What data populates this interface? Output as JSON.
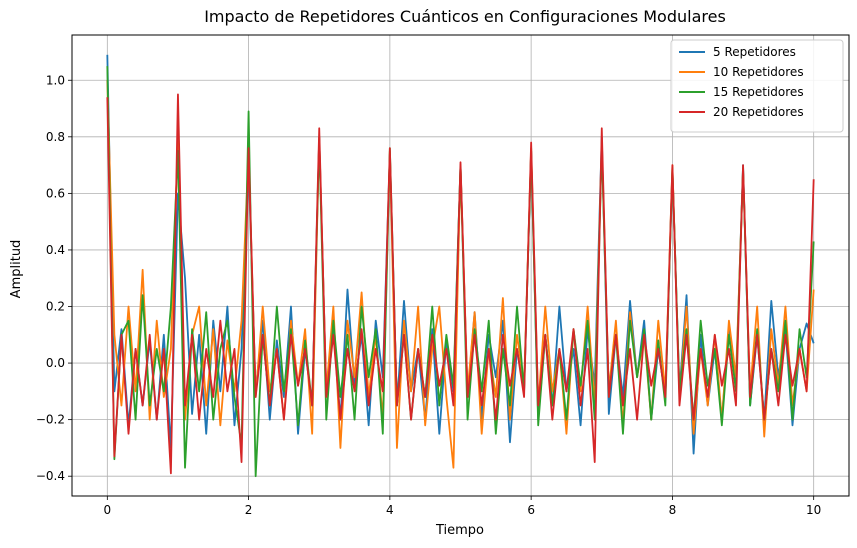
{
  "chart_data": {
    "type": "line",
    "title": "Impacto de Repetidores Cuánticos en Configuraciones Modulares",
    "xlabel": "Tiempo",
    "ylabel": "Amplitud",
    "xlim": [
      -0.5,
      10.5
    ],
    "ylim": [
      -0.47,
      1.16
    ],
    "xticks": [
      0,
      2,
      4,
      6,
      8,
      10
    ],
    "yticks": [
      -0.4,
      -0.2,
      0.0,
      0.2,
      0.4,
      0.6,
      0.8,
      1.0
    ],
    "xtick_labels": [
      "0",
      "2",
      "4",
      "6",
      "8",
      "10"
    ],
    "ytick_labels": [
      "−0.4",
      "−0.2",
      "0.0",
      "0.2",
      "0.4",
      "0.6",
      "0.8",
      "1.0"
    ],
    "grid": true,
    "legend_position": "top-right",
    "series": [
      {
        "name": "5 Repetidores",
        "color": "#1f77b4",
        "x": [
          0,
          0.1,
          0.2,
          0.3,
          0.4,
          0.5,
          0.6,
          0.7,
          0.8,
          0.9,
          1.0,
          1.1,
          1.2,
          1.3,
          1.4,
          1.5,
          1.6,
          1.7,
          1.8,
          1.9,
          2.0,
          2.1,
          2.2,
          2.3,
          2.4,
          2.5,
          2.6,
          2.7,
          2.8,
          2.9,
          3.0,
          3.1,
          3.2,
          3.3,
          3.4,
          3.5,
          3.6,
          3.7,
          3.8,
          3.9,
          4.0,
          4.1,
          4.2,
          4.3,
          4.4,
          4.5,
          4.6,
          4.7,
          4.8,
          4.9,
          5.0,
          5.1,
          5.2,
          5.3,
          5.4,
          5.5,
          5.6,
          5.7,
          5.8,
          5.9,
          6.0,
          6.1,
          6.2,
          6.3,
          6.4,
          6.5,
          6.6,
          6.7,
          6.8,
          6.9,
          7.0,
          7.1,
          7.2,
          7.3,
          7.4,
          7.5,
          7.6,
          7.7,
          7.8,
          7.9,
          8.0,
          8.1,
          8.2,
          8.3,
          8.4,
          8.5,
          8.6,
          8.7,
          8.8,
          8.9,
          9.0,
          9.1,
          9.2,
          9.3,
          9.4,
          9.5,
          9.6,
          9.7,
          9.8,
          9.9,
          10.0
        ],
        "y": [
          1.09,
          -0.1,
          0.12,
          -0.22,
          0.05,
          -0.15,
          0.08,
          -0.2,
          0.1,
          -0.3,
          0.6,
          0.3,
          -0.18,
          0.1,
          -0.25,
          0.15,
          -0.1,
          0.2,
          -0.22,
          0.05,
          0.7,
          -0.1,
          0.15,
          -0.2,
          0.08,
          -0.12,
          0.2,
          -0.25,
          0.05,
          -0.15,
          0.8,
          -0.1,
          0.12,
          -0.2,
          0.26,
          -0.08,
          0.1,
          -0.22,
          0.15,
          -0.05,
          0.74,
          -0.15,
          0.22,
          -0.1,
          0.05,
          -0.2,
          0.12,
          -0.25,
          0.08,
          -0.1,
          0.7,
          -0.12,
          0.18,
          -0.2,
          0.1,
          -0.05,
          0.15,
          -0.28,
          0.05,
          -0.1,
          0.75,
          -0.2,
          0.1,
          -0.15,
          0.2,
          -0.1,
          0.05,
          -0.22,
          0.12,
          -0.08,
          0.8,
          -0.18,
          0.1,
          -0.12,
          0.22,
          -0.05,
          0.15,
          -0.2,
          0.05,
          -0.12,
          0.68,
          -0.1,
          0.24,
          -0.32,
          0.1,
          -0.15,
          0.05,
          -0.2,
          0.12,
          -0.08,
          0.7,
          -0.15,
          0.1,
          -0.2,
          0.22,
          -0.05,
          0.12,
          -0.22,
          0.05,
          0.14,
          0.07
        ]
      },
      {
        "name": "10 Repetidores",
        "color": "#ff7f0e",
        "x": [
          0,
          0.1,
          0.2,
          0.3,
          0.4,
          0.5,
          0.6,
          0.7,
          0.8,
          0.9,
          1.0,
          1.1,
          1.2,
          1.3,
          1.4,
          1.5,
          1.6,
          1.7,
          1.8,
          1.9,
          2.0,
          2.1,
          2.2,
          2.3,
          2.4,
          2.5,
          2.6,
          2.7,
          2.8,
          2.9,
          3.0,
          3.1,
          3.2,
          3.3,
          3.4,
          3.5,
          3.6,
          3.7,
          3.8,
          3.9,
          4.0,
          4.1,
          4.2,
          4.3,
          4.4,
          4.5,
          4.6,
          4.7,
          4.8,
          4.9,
          5.0,
          5.1,
          5.2,
          5.3,
          5.4,
          5.5,
          5.6,
          5.7,
          5.8,
          5.9,
          6.0,
          6.1,
          6.2,
          6.3,
          6.4,
          6.5,
          6.6,
          6.7,
          6.8,
          6.9,
          7.0,
          7.1,
          7.2,
          7.3,
          7.4,
          7.5,
          7.6,
          7.7,
          7.8,
          7.9,
          8.0,
          8.1,
          8.2,
          8.3,
          8.4,
          8.5,
          8.6,
          8.7,
          8.8,
          8.9,
          9.0,
          9.1,
          9.2,
          9.3,
          9.4,
          9.5,
          9.6,
          9.7,
          9.8,
          9.9,
          10.0
        ],
        "y": [
          1.0,
          0.1,
          -0.15,
          0.2,
          -0.1,
          0.33,
          -0.2,
          0.15,
          -0.12,
          0.05,
          0.8,
          -0.2,
          0.1,
          0.2,
          -0.15,
          0.12,
          -0.22,
          0.08,
          -0.1,
          0.15,
          0.75,
          -0.12,
          0.2,
          -0.1,
          0.05,
          -0.2,
          0.15,
          -0.08,
          0.12,
          -0.25,
          0.8,
          -0.1,
          0.2,
          -0.3,
          0.15,
          -0.05,
          0.25,
          -0.12,
          0.1,
          -0.2,
          0.75,
          -0.3,
          0.15,
          -0.1,
          0.2,
          -0.22,
          0.05,
          0.2,
          -0.12,
          -0.37,
          0.7,
          -0.1,
          0.18,
          -0.25,
          0.05,
          -0.12,
          0.23,
          -0.2,
          0.1,
          -0.08,
          0.76,
          -0.15,
          0.2,
          -0.1,
          0.05,
          -0.25,
          0.12,
          -0.1,
          0.2,
          -0.15,
          0.78,
          -0.1,
          0.15,
          -0.22,
          0.18,
          -0.05,
          0.1,
          -0.2,
          0.15,
          -0.1,
          0.7,
          -0.12,
          0.2,
          -0.25,
          0.05,
          -0.15,
          0.1,
          -0.2,
          0.15,
          -0.05,
          0.68,
          -0.1,
          0.2,
          -0.26,
          0.12,
          -0.08,
          0.2,
          -0.15,
          0.05,
          -0.1,
          0.26
        ]
      },
      {
        "name": "15 Repetidores",
        "color": "#2ca02c",
        "x": [
          0,
          0.1,
          0.2,
          0.3,
          0.4,
          0.5,
          0.6,
          0.7,
          0.8,
          0.9,
          1.0,
          1.1,
          1.2,
          1.3,
          1.4,
          1.5,
          1.6,
          1.7,
          1.8,
          1.9,
          2.0,
          2.1,
          2.2,
          2.3,
          2.4,
          2.5,
          2.6,
          2.7,
          2.8,
          2.9,
          3.0,
          3.1,
          3.2,
          3.3,
          3.4,
          3.5,
          3.6,
          3.7,
          3.8,
          3.9,
          4.0,
          4.1,
          4.2,
          4.3,
          4.4,
          4.5,
          4.6,
          4.7,
          4.8,
          4.9,
          5.0,
          5.1,
          5.2,
          5.3,
          5.4,
          5.5,
          5.6,
          5.7,
          5.8,
          5.9,
          6.0,
          6.1,
          6.2,
          6.3,
          6.4,
          6.5,
          6.6,
          6.7,
          6.8,
          6.9,
          7.0,
          7.1,
          7.2,
          7.3,
          7.4,
          7.5,
          7.6,
          7.7,
          7.8,
          7.9,
          8.0,
          8.1,
          8.2,
          8.3,
          8.4,
          8.5,
          8.6,
          8.7,
          8.8,
          8.9,
          9.0,
          9.1,
          9.2,
          9.3,
          9.4,
          9.5,
          9.6,
          9.7,
          9.8,
          9.9,
          10.0
        ],
        "y": [
          1.05,
          -0.34,
          0.1,
          0.15,
          -0.2,
          0.24,
          -0.15,
          0.05,
          -0.1,
          0.2,
          0.75,
          -0.37,
          0.12,
          -0.1,
          0.18,
          -0.2,
          0.05,
          0.15,
          -0.12,
          -0.29,
          0.89,
          -0.4,
          0.1,
          -0.15,
          0.2,
          -0.1,
          0.12,
          -0.22,
          0.08,
          -0.15,
          0.79,
          -0.2,
          0.15,
          -0.12,
          0.1,
          -0.2,
          0.2,
          -0.05,
          0.12,
          -0.25,
          0.76,
          -0.15,
          0.1,
          -0.2,
          0.05,
          -0.12,
          0.2,
          -0.15,
          0.1,
          -0.08,
          0.7,
          -0.2,
          0.12,
          -0.1,
          0.15,
          -0.25,
          0.05,
          -0.15,
          0.2,
          -0.1,
          0.75,
          -0.22,
          0.1,
          -0.15,
          0.05,
          -0.2,
          0.12,
          -0.08,
          0.15,
          -0.2,
          0.77,
          -0.12,
          0.1,
          -0.25,
          0.15,
          -0.05,
          0.12,
          -0.2,
          0.08,
          -0.15,
          0.69,
          -0.1,
          0.12,
          -0.2,
          0.15,
          -0.08,
          0.05,
          -0.22,
          0.1,
          -0.1,
          0.69,
          -0.15,
          0.12,
          -0.2,
          0.05,
          -0.1,
          0.15,
          -0.2,
          0.12,
          -0.05,
          0.43
        ]
      },
      {
        "name": "20 Repetidores",
        "color": "#d62728",
        "x": [
          0,
          0.1,
          0.2,
          0.3,
          0.4,
          0.5,
          0.6,
          0.7,
          0.8,
          0.9,
          1.0,
          1.1,
          1.2,
          1.3,
          1.4,
          1.5,
          1.6,
          1.7,
          1.8,
          1.9,
          2.0,
          2.1,
          2.2,
          2.3,
          2.4,
          2.5,
          2.6,
          2.7,
          2.8,
          2.9,
          3.0,
          3.1,
          3.2,
          3.3,
          3.4,
          3.5,
          3.6,
          3.7,
          3.8,
          3.9,
          4.0,
          4.1,
          4.2,
          4.3,
          4.4,
          4.5,
          4.6,
          4.7,
          4.8,
          4.9,
          5.0,
          5.1,
          5.2,
          5.3,
          5.4,
          5.5,
          5.6,
          5.7,
          5.8,
          5.9,
          6.0,
          6.1,
          6.2,
          6.3,
          6.4,
          6.5,
          6.6,
          6.7,
          6.8,
          6.9,
          7.0,
          7.1,
          7.2,
          7.3,
          7.4,
          7.5,
          7.6,
          7.7,
          7.8,
          7.9,
          8.0,
          8.1,
          8.2,
          8.3,
          8.4,
          8.5,
          8.6,
          8.7,
          8.8,
          8.9,
          9.0,
          9.1,
          9.2,
          9.3,
          9.4,
          9.5,
          9.6,
          9.7,
          9.8,
          9.9,
          10.0
        ],
        "y": [
          0.94,
          -0.33,
          0.1,
          -0.25,
          0.05,
          -0.15,
          0.1,
          -0.2,
          0.05,
          -0.39,
          0.95,
          -0.15,
          0.1,
          -0.2,
          0.05,
          -0.12,
          0.15,
          -0.1,
          0.05,
          -0.35,
          0.76,
          -0.12,
          0.1,
          -0.15,
          0.05,
          -0.2,
          0.1,
          -0.08,
          0.05,
          -0.15,
          0.83,
          -0.12,
          0.1,
          -0.2,
          0.05,
          -0.1,
          0.12,
          -0.15,
          0.05,
          -0.1,
          0.76,
          -0.15,
          0.1,
          -0.2,
          0.05,
          -0.12,
          0.1,
          -0.08,
          0.05,
          -0.15,
          0.71,
          -0.12,
          0.1,
          -0.15,
          0.05,
          -0.2,
          0.1,
          -0.08,
          0.05,
          -0.12,
          0.78,
          -0.15,
          0.1,
          -0.2,
          0.05,
          -0.1,
          0.12,
          -0.15,
          0.05,
          -0.35,
          0.83,
          -0.12,
          0.1,
          -0.15,
          0.05,
          -0.2,
          0.1,
          -0.08,
          0.05,
          -0.12,
          0.7,
          -0.15,
          0.1,
          -0.2,
          0.05,
          -0.12,
          0.1,
          -0.08,
          0.05,
          -0.15,
          0.7,
          -0.12,
          0.1,
          -0.2,
          0.05,
          -0.15,
          0.1,
          -0.08,
          0.05,
          -0.1,
          0.65
        ]
      }
    ]
  }
}
